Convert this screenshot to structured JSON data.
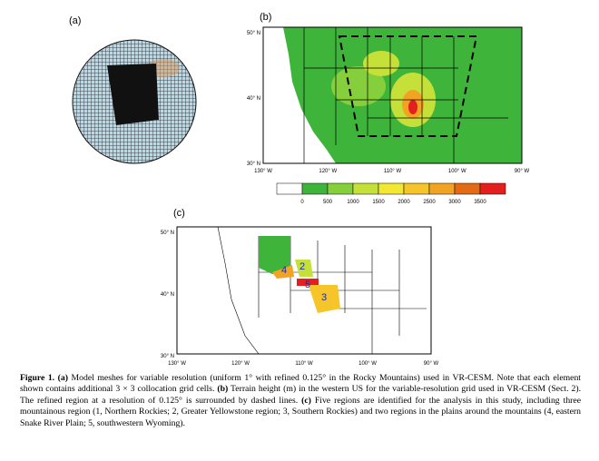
{
  "figure": {
    "panel_a": {
      "label": "(a)"
    },
    "panel_b": {
      "label": "(b)",
      "lat_labels": [
        "50° N",
        "40° N",
        "30° N"
      ],
      "lon_labels": [
        "130° W",
        "120° W",
        "110° W",
        "100° W",
        "90° W"
      ],
      "colorbar": {
        "ticks": [
          0,
          500,
          1000,
          1500,
          2000,
          2500,
          3000,
          3500
        ],
        "colors": [
          "#ffffff",
          "#3fb43a",
          "#86cf3c",
          "#c6e03a",
          "#f2e834",
          "#f6c529",
          "#f3a324",
          "#e36b16",
          "#e3201f"
        ]
      }
    },
    "panel_c": {
      "label": "(c)",
      "lat_labels": [
        "50° N",
        "40° N",
        "30° N"
      ],
      "lon_labels": [
        "130° W",
        "120° W",
        "110° W",
        "100° W",
        "90° W"
      ],
      "regions": [
        "4",
        "2",
        "5",
        "3"
      ]
    },
    "caption": [
      {
        "text": "Figure 1. (a)",
        "bold": true
      },
      {
        "text": " Model meshes for variable resolution (uniform 1° with refined 0.125° in the Rocky Mountains) used in VR-CESM. Note that each element shown contains additional 3 × 3 collocation grid cells. ",
        "bold": false
      },
      {
        "text": "(b)",
        "bold": true
      },
      {
        "text": " Terrain height (m) in the western US for the variable-resolution grid used in VR-CESM (Sect. 2). The refined region at a resolution of 0.125° is surrounded by dashed lines. ",
        "bold": false
      },
      {
        "text": "(c)",
        "bold": true
      },
      {
        "text": " Five regions are identified for the analysis in this study, including three mountainous region (1, Northern Rockies; 2, Greater Yellowstone region; 3, Southern Rockies) and two regions in the plains around the mountains (4, eastern Snake River Plain; 5, southwestern Wyoming).",
        "bold": false
      }
    ]
  }
}
